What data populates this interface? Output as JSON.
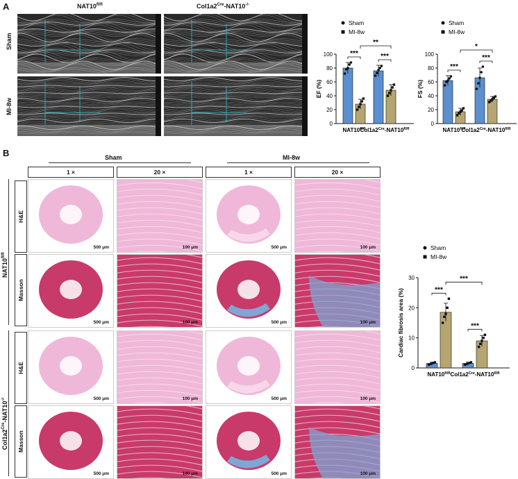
{
  "panel_a": {
    "letter": "A",
    "col_headers": [
      "NAT10",
      "Col1a2",
      "-NAT10"
    ],
    "col_sup": [
      "fl/fl",
      "Cre",
      "-/-"
    ],
    "row_labels": [
      "Sham",
      "MI-8w"
    ]
  },
  "panel_b": {
    "letter": "B",
    "group_headers": [
      "Sham",
      "MI-8w"
    ],
    "mag_labels": [
      "1 ×",
      "20 ×",
      "1 ×",
      "20 ×"
    ],
    "genotype_labels": [
      "NAT10",
      "Col1a2",
      "-NAT10"
    ],
    "genotype_sup": [
      "fl/fl",
      "Cre",
      "-/-"
    ],
    "stain_labels": [
      "H&E",
      "Masson",
      "H&E",
      "Masson"
    ],
    "scale_1x": "500 μm",
    "scale_20x": "100 μm"
  },
  "chart_data": [
    {
      "type": "bar",
      "ylabel": "EF (%)",
      "ylim": [
        0,
        100
      ],
      "yticks": [
        "0",
        "20",
        "40",
        "60",
        "80",
        "100"
      ],
      "categories": [
        "NAT10fl/fl",
        "Col1a2Cre-NAT10fl/fl"
      ],
      "category_parts": [
        [
          "NAT10",
          "fl/fl",
          ""
        ],
        [
          "Col1a2",
          "Cre",
          "-NAT10",
          "fl/fl"
        ]
      ],
      "series": [
        {
          "name": "Sham",
          "values": [
            80,
            76
          ],
          "err": [
            8,
            8
          ],
          "points": [
            [
              72,
              78,
              80,
              85,
              88
            ],
            [
              69,
              73,
              77,
              80,
              83
            ]
          ]
        },
        {
          "name": "MI-8w",
          "values": [
            28,
            48
          ],
          "err": [
            7,
            8
          ],
          "points": [
            [
              20,
              24,
              28,
              32,
              36
            ],
            [
              40,
              44,
              48,
              52,
              56
            ]
          ]
        }
      ],
      "sig_within": [
        "***",
        "***"
      ],
      "sig_between": "**",
      "legend": "top"
    },
    {
      "type": "bar",
      "ylabel": "FS (%)",
      "ylim": [
        0,
        100
      ],
      "yticks": [
        "0",
        "20",
        "40",
        "60",
        "80",
        "100"
      ],
      "categories": [
        "NAT10fl/fl",
        "Col1a2Cre-NAT10fl/fl"
      ],
      "category_parts": [
        [
          "NAT10",
          "fl/fl",
          ""
        ],
        [
          "Col1a2",
          "Cre",
          "-NAT10",
          "fl/fl"
        ]
      ],
      "series": [
        {
          "name": "Sham",
          "values": [
            62,
            66
          ],
          "err": [
            7,
            14
          ],
          "points": [
            [
              55,
              60,
              62,
              65,
              68
            ],
            [
              50,
              58,
              66,
              74,
              82
            ]
          ]
        },
        {
          "name": "MI-8w",
          "values": [
            17,
            35
          ],
          "err": [
            5,
            4
          ],
          "points": [
            [
              12,
              15,
              17,
              19,
              22
            ],
            [
              31,
              33,
              35,
              37,
              39
            ]
          ]
        }
      ],
      "sig_within": [
        "***",
        "***"
      ],
      "sig_between": "*",
      "legend": "top"
    },
    {
      "type": "bar",
      "ylabel": "Cardiac fibrosis area (%)",
      "ylim": [
        0,
        30
      ],
      "yticks": [
        "0",
        "10",
        "20",
        "30"
      ],
      "categories": [
        "NAT10fl/fl",
        "Col1a2Cre-NAT10fl/fl"
      ],
      "category_parts": [
        [
          "NAT10",
          "fl/fl",
          ""
        ],
        [
          "Col1a2",
          "Cre",
          "-NAT10",
          "fl/fl"
        ]
      ],
      "series": [
        {
          "name": "Sham",
          "values": [
            1.5,
            1.5
          ],
          "err": [
            0.4,
            0.4
          ],
          "points": [
            [
              1.1,
              1.3,
              1.5,
              1.7,
              1.9
            ],
            [
              1.1,
              1.3,
              1.5,
              1.7,
              1.9
            ]
          ]
        },
        {
          "name": "MI-8w",
          "values": [
            18.5,
            9
          ],
          "err": [
            3,
            1.8
          ],
          "points": [
            [
              15,
              17,
              18,
              20,
              23
            ],
            [
              7,
              8,
              9,
              10,
              11
            ]
          ]
        }
      ],
      "sig_within": [
        "***",
        "***"
      ],
      "sig_between": "***",
      "legend": "top"
    }
  ],
  "colors": {
    "sham_bar": "#5b8fcf",
    "mi_bar": "#b5a571",
    "he_tissue": "#f0b8d8",
    "masson_tissue": "#c83a6a",
    "masson_fibrosis": "#7fa6d4"
  }
}
